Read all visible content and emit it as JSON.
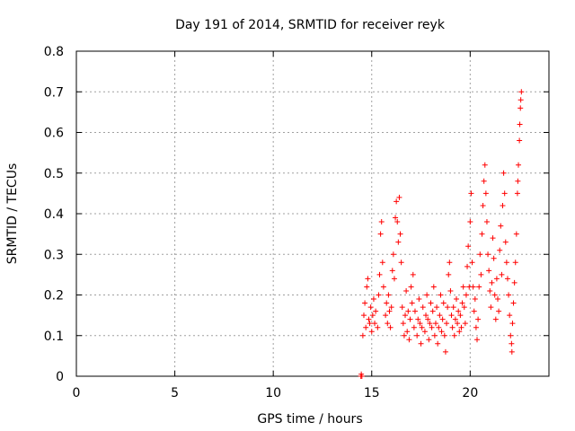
{
  "chart_data": {
    "type": "scatter",
    "title": "Day 191 of 2014, SRMTID for receiver reyk",
    "xlabel": "GPS time / hours",
    "ylabel": "SRMTID / TECUs",
    "xlim": [
      0,
      24
    ],
    "ylim": [
      0,
      0.8
    ],
    "xticks": [
      0,
      5,
      10,
      15,
      20
    ],
    "yticks": [
      0,
      0.1,
      0.2,
      0.3,
      0.4,
      0.5,
      0.6,
      0.7,
      0.8
    ],
    "xtick_labels": [
      "0",
      "5",
      "10",
      "15",
      "20"
    ],
    "ytick_labels": [
      "0",
      "0.1",
      "0.2",
      "0.3",
      "0.4",
      "0.5",
      "0.6",
      "0.7",
      "0.8"
    ],
    "grid": true,
    "marker": "+",
    "color": "#ff0000",
    "series": [
      {
        "name": "SRMTID",
        "points": [
          [
            14.45,
            0.0
          ],
          [
            14.47,
            0.005
          ],
          [
            14.5,
            0.0
          ],
          [
            14.55,
            0.1
          ],
          [
            14.6,
            0.15
          ],
          [
            14.65,
            0.18
          ],
          [
            14.7,
            0.12
          ],
          [
            14.75,
            0.22
          ],
          [
            14.8,
            0.24
          ],
          [
            14.85,
            0.14
          ],
          [
            14.9,
            0.13
          ],
          [
            14.95,
            0.17
          ],
          [
            15.0,
            0.11
          ],
          [
            15.05,
            0.15
          ],
          [
            15.1,
            0.19
          ],
          [
            15.15,
            0.13
          ],
          [
            15.2,
            0.16
          ],
          [
            15.3,
            0.12
          ],
          [
            15.35,
            0.2
          ],
          [
            15.4,
            0.25
          ],
          [
            15.45,
            0.35
          ],
          [
            15.5,
            0.38
          ],
          [
            15.55,
            0.28
          ],
          [
            15.6,
            0.22
          ],
          [
            15.7,
            0.15
          ],
          [
            15.75,
            0.18
          ],
          [
            15.8,
            0.13
          ],
          [
            15.85,
            0.2
          ],
          [
            15.9,
            0.16
          ],
          [
            15.95,
            0.12
          ],
          [
            16.0,
            0.17
          ],
          [
            16.05,
            0.26
          ],
          [
            16.1,
            0.3
          ],
          [
            16.15,
            0.24
          ],
          [
            16.2,
            0.39
          ],
          [
            16.25,
            0.43
          ],
          [
            16.3,
            0.38
          ],
          [
            16.35,
            0.33
          ],
          [
            16.4,
            0.44
          ],
          [
            16.45,
            0.35
          ],
          [
            16.5,
            0.28
          ],
          [
            16.55,
            0.17
          ],
          [
            16.6,
            0.13
          ],
          [
            16.65,
            0.1
          ],
          [
            16.7,
            0.15
          ],
          [
            16.75,
            0.21
          ],
          [
            16.8,
            0.11
          ],
          [
            16.85,
            0.16
          ],
          [
            16.9,
            0.09
          ],
          [
            16.95,
            0.14
          ],
          [
            17.0,
            0.22
          ],
          [
            17.05,
            0.18
          ],
          [
            17.1,
            0.25
          ],
          [
            17.15,
            0.12
          ],
          [
            17.2,
            0.16
          ],
          [
            17.3,
            0.1
          ],
          [
            17.35,
            0.14
          ],
          [
            17.4,
            0.19
          ],
          [
            17.45,
            0.13
          ],
          [
            17.5,
            0.08
          ],
          [
            17.55,
            0.12
          ],
          [
            17.6,
            0.17
          ],
          [
            17.7,
            0.11
          ],
          [
            17.75,
            0.15
          ],
          [
            17.8,
            0.2
          ],
          [
            17.85,
            0.14
          ],
          [
            17.9,
            0.09
          ],
          [
            17.95,
            0.13
          ],
          [
            18.0,
            0.18
          ],
          [
            18.05,
            0.12
          ],
          [
            18.1,
            0.16
          ],
          [
            18.15,
            0.22
          ],
          [
            18.2,
            0.1
          ],
          [
            18.25,
            0.13
          ],
          [
            18.3,
            0.17
          ],
          [
            18.35,
            0.08
          ],
          [
            18.4,
            0.12
          ],
          [
            18.45,
            0.15
          ],
          [
            18.5,
            0.2
          ],
          [
            18.55,
            0.11
          ],
          [
            18.6,
            0.14
          ],
          [
            18.65,
            0.18
          ],
          [
            18.7,
            0.1
          ],
          [
            18.75,
            0.06
          ],
          [
            18.8,
            0.13
          ],
          [
            18.85,
            0.17
          ],
          [
            18.9,
            0.25
          ],
          [
            18.95,
            0.28
          ],
          [
            19.0,
            0.21
          ],
          [
            19.05,
            0.15
          ],
          [
            19.1,
            0.12
          ],
          [
            19.15,
            0.17
          ],
          [
            19.2,
            0.1
          ],
          [
            19.25,
            0.14
          ],
          [
            19.3,
            0.19
          ],
          [
            19.35,
            0.13
          ],
          [
            19.4,
            0.16
          ],
          [
            19.45,
            0.11
          ],
          [
            19.5,
            0.15
          ],
          [
            19.55,
            0.12
          ],
          [
            19.6,
            0.18
          ],
          [
            19.65,
            0.22
          ],
          [
            19.7,
            0.17
          ],
          [
            19.75,
            0.13
          ],
          [
            19.8,
            0.2
          ],
          [
            19.85,
            0.27
          ],
          [
            19.9,
            0.32
          ],
          [
            19.95,
            0.22
          ],
          [
            20.0,
            0.38
          ],
          [
            20.05,
            0.45
          ],
          [
            20.1,
            0.28
          ],
          [
            20.15,
            0.22
          ],
          [
            20.2,
            0.16
          ],
          [
            20.25,
            0.19
          ],
          [
            20.3,
            0.12
          ],
          [
            20.35,
            0.09
          ],
          [
            20.4,
            0.14
          ],
          [
            20.45,
            0.22
          ],
          [
            20.5,
            0.3
          ],
          [
            20.55,
            0.25
          ],
          [
            20.6,
            0.35
          ],
          [
            20.65,
            0.42
          ],
          [
            20.7,
            0.48
          ],
          [
            20.75,
            0.52
          ],
          [
            20.8,
            0.45
          ],
          [
            20.85,
            0.38
          ],
          [
            20.9,
            0.3
          ],
          [
            20.95,
            0.26
          ],
          [
            21.0,
            0.21
          ],
          [
            21.05,
            0.17
          ],
          [
            21.1,
            0.23
          ],
          [
            21.15,
            0.34
          ],
          [
            21.2,
            0.29
          ],
          [
            21.25,
            0.2
          ],
          [
            21.3,
            0.14
          ],
          [
            21.35,
            0.24
          ],
          [
            21.4,
            0.19
          ],
          [
            21.45,
            0.16
          ],
          [
            21.5,
            0.31
          ],
          [
            21.55,
            0.37
          ],
          [
            21.6,
            0.25
          ],
          [
            21.65,
            0.42
          ],
          [
            21.7,
            0.5
          ],
          [
            21.75,
            0.45
          ],
          [
            21.8,
            0.33
          ],
          [
            21.85,
            0.28
          ],
          [
            21.9,
            0.24
          ],
          [
            21.95,
            0.2
          ],
          [
            22.0,
            0.15
          ],
          [
            22.05,
            0.1
          ],
          [
            22.1,
            0.08
          ],
          [
            22.12,
            0.06
          ],
          [
            22.15,
            0.13
          ],
          [
            22.2,
            0.18
          ],
          [
            22.25,
            0.23
          ],
          [
            22.3,
            0.28
          ],
          [
            22.35,
            0.35
          ],
          [
            22.4,
            0.45
          ],
          [
            22.42,
            0.48
          ],
          [
            22.45,
            0.52
          ],
          [
            22.5,
            0.58
          ],
          [
            22.52,
            0.62
          ],
          [
            22.55,
            0.66
          ],
          [
            22.57,
            0.68
          ],
          [
            22.6,
            0.7
          ]
        ]
      }
    ]
  }
}
